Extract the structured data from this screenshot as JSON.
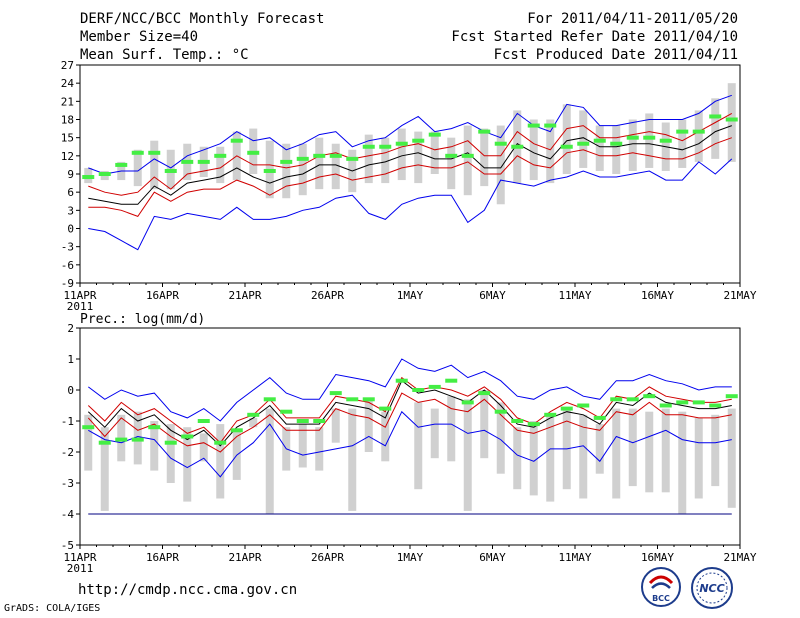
{
  "header": {
    "title": "DERF/NCC/BCC Monthly Forecast",
    "member_size": "Member Size=40",
    "variable": "Mean Surf. Temp.: °C",
    "period": "For 2011/04/11-2011/05/20",
    "fcst_started": "Fcst Started Refer Date 2011/04/10",
    "fcst_produced": "Fcst Produced Date 2011/04/11"
  },
  "footer": {
    "url": "http://cmdp.ncc.cma.gov.cn",
    "credit": "GrADS: COLA/IGES"
  },
  "logos": {
    "bcc": "BCC",
    "ncc": "NCC"
  },
  "colors": {
    "max": "#0000ee",
    "min": "#0000ee",
    "upper": "#d00000",
    "lower": "#d00000",
    "mean": "#000000",
    "obs": "#44ee44",
    "box": "#d0d0d0",
    "floor": "#000080"
  },
  "chart_data": [
    {
      "type": "line",
      "title": "Mean Surf. Temp.: °C",
      "x_ticks": [
        "11APR",
        "16APR",
        "21APR",
        "26APR",
        "1MAY",
        "6MAY",
        "11MAY",
        "16MAY",
        "21MAY"
      ],
      "x_sub": "2011",
      "x_range": [
        0,
        40
      ],
      "ylim": [
        -9,
        27
      ],
      "y_ticks": [
        -9,
        -6,
        -3,
        0,
        3,
        6,
        9,
        12,
        15,
        18,
        21,
        24,
        27
      ],
      "series": [
        {
          "name": "max",
          "values": [
            10,
            9,
            9.5,
            9.5,
            11.5,
            10,
            12,
            13,
            14,
            16,
            14.5,
            15,
            13,
            14,
            15.5,
            16,
            13.5,
            14.5,
            15,
            17,
            18.5,
            16,
            16.5,
            17.5,
            16,
            15,
            19,
            17,
            16,
            20.5,
            20,
            17,
            17,
            17.5,
            18,
            18,
            18,
            19,
            21,
            22
          ]
        },
        {
          "name": "upper",
          "values": [
            7,
            6,
            5.5,
            6,
            8.5,
            6.5,
            9,
            9.5,
            10,
            12,
            10.5,
            10.5,
            10,
            10.5,
            12,
            12.5,
            11.5,
            12,
            12.5,
            13.5,
            14,
            13,
            13.5,
            14.5,
            12,
            12,
            16,
            14,
            13,
            16.5,
            17,
            15,
            15,
            15.5,
            16,
            15.5,
            14.5,
            16,
            17.5,
            19
          ]
        },
        {
          "name": "mean",
          "values": [
            5,
            4.5,
            4,
            4,
            7,
            5.5,
            7.5,
            8,
            8.5,
            10,
            8.5,
            7.5,
            8.5,
            9,
            10.5,
            10.5,
            9.5,
            10.5,
            11,
            12,
            12.5,
            11.5,
            11.5,
            12.5,
            10,
            10,
            14,
            12.5,
            11.5,
            14.5,
            15,
            13.5,
            13.5,
            14,
            14,
            13.5,
            13,
            14,
            16,
            17
          ]
        },
        {
          "name": "lower",
          "values": [
            3.5,
            3.5,
            3,
            2,
            6,
            4.5,
            6,
            6.5,
            6.5,
            8,
            7,
            5.5,
            7,
            7.5,
            8.5,
            9,
            8,
            8.5,
            9,
            10,
            10.5,
            10,
            10,
            11,
            9,
            9,
            12,
            10.5,
            10,
            12.5,
            13,
            12,
            12,
            12.5,
            12,
            11.5,
            11.5,
            12.5,
            14,
            15
          ]
        },
        {
          "name": "min",
          "values": [
            0,
            -0.5,
            -2,
            -3.5,
            2,
            1.5,
            2.5,
            2,
            1.5,
            3.5,
            1.5,
            1.5,
            2,
            3,
            3.5,
            5,
            5.5,
            2.5,
            1.5,
            4,
            5,
            5.5,
            5.5,
            1,
            3,
            8,
            7.5,
            7,
            8,
            8.5,
            9.5,
            8.5,
            8.5,
            9,
            9.5,
            8,
            8,
            11,
            9,
            11.5
          ]
        },
        {
          "name": "obs",
          "values": [
            8.5,
            9,
            10.5,
            12.5,
            12.5,
            9.5,
            11,
            11,
            12,
            14.5,
            12.5,
            9.5,
            11,
            11.5,
            12,
            12,
            11.5,
            13.5,
            13.5,
            14,
            14.5,
            15.5,
            12,
            12,
            16,
            14,
            13.5,
            17,
            17,
            13.5,
            14,
            14.5,
            14,
            15,
            15,
            14.5,
            16,
            16,
            18.5,
            18
          ]
        },
        {
          "name": "box_high",
          "values": [
            10,
            9.5,
            11,
            13,
            14.5,
            13,
            14,
            13.5,
            13.5,
            16,
            16.5,
            14.5,
            14,
            14,
            15,
            14,
            13,
            15.5,
            15,
            16.5,
            16,
            16,
            15,
            17,
            16.5,
            17,
            19.5,
            18,
            18,
            20.5,
            19.5,
            17,
            17,
            18,
            19,
            17.5,
            18,
            19.5,
            21.5,
            24
          ]
        },
        {
          "name": "box_low",
          "values": [
            7.5,
            8,
            8,
            7,
            6.5,
            6.5,
            8,
            8.5,
            7.5,
            8,
            9,
            5,
            5,
            5.5,
            6.5,
            6.5,
            6,
            7.5,
            7.5,
            8,
            7.5,
            9,
            6.5,
            5.5,
            7,
            4,
            7.5,
            8,
            7.5,
            9,
            10,
            9.5,
            9,
            9.5,
            10,
            9.5,
            10,
            11,
            11.5,
            11
          ]
        }
      ]
    },
    {
      "type": "line",
      "title": "Prec.: log(mm/d)",
      "x_ticks": [
        "11APR",
        "16APR",
        "21APR",
        "26APR",
        "1MAY",
        "6MAY",
        "11MAY",
        "16MAY",
        "21MAY"
      ],
      "x_sub": "2011",
      "x_range": [
        0,
        40
      ],
      "ylim": [
        -5,
        2
      ],
      "y_ticks": [
        -5,
        -4,
        -3,
        -2,
        -1,
        0,
        1,
        2
      ],
      "floor_value": -4,
      "series": [
        {
          "name": "max",
          "values": [
            0.1,
            -0.3,
            0,
            -0.2,
            -0.1,
            -0.7,
            -0.9,
            -0.6,
            -1,
            -0.4,
            0,
            0.4,
            -0.1,
            -0.3,
            -0.3,
            0.5,
            0.4,
            0.3,
            0.1,
            1,
            0.7,
            0.6,
            0.8,
            0.4,
            0.6,
            0.3,
            -0.2,
            -0.3,
            0,
            0.1,
            -0.2,
            -0.3,
            0.3,
            0.3,
            0.5,
            0.3,
            0.2,
            0,
            0.1,
            0.1
          ]
        },
        {
          "name": "upper",
          "values": [
            -0.5,
            -1,
            -0.4,
            -0.8,
            -0.6,
            -1,
            -1.4,
            -1.2,
            -1.7,
            -1,
            -0.8,
            -0.3,
            -0.9,
            -0.9,
            -0.9,
            -0.2,
            -0.3,
            -0.4,
            -0.7,
            0.4,
            0,
            0.1,
            0,
            -0.2,
            0.1,
            -0.3,
            -0.9,
            -1.1,
            -0.7,
            -0.4,
            -0.6,
            -0.9,
            -0.2,
            -0.3,
            0.1,
            -0.2,
            -0.3,
            -0.4,
            -0.4,
            -0.3
          ]
        },
        {
          "name": "mean",
          "values": [
            -0.7,
            -1.2,
            -0.6,
            -1,
            -0.8,
            -1.3,
            -1.6,
            -1.3,
            -1.8,
            -1.2,
            -0.9,
            -0.5,
            -1.1,
            -1.1,
            -1.1,
            -0.4,
            -0.5,
            -0.6,
            -0.9,
            0.3,
            -0.1,
            0,
            -0.2,
            -0.4,
            0,
            -0.5,
            -1.1,
            -1.2,
            -0.9,
            -0.7,
            -0.8,
            -1.1,
            -0.4,
            -0.5,
            -0.1,
            -0.4,
            -0.5,
            -0.6,
            -0.6,
            -0.5
          ]
        },
        {
          "name": "lower",
          "values": [
            -0.9,
            -1.5,
            -0.9,
            -1.3,
            -1.1,
            -1.5,
            -1.8,
            -1.7,
            -2,
            -1.5,
            -1.2,
            -0.8,
            -1.3,
            -1.3,
            -1.3,
            -0.6,
            -0.8,
            -0.9,
            -1.2,
            -0.1,
            -0.4,
            -0.3,
            -0.6,
            -0.7,
            -0.3,
            -0.8,
            -1.3,
            -1.4,
            -1.2,
            -1,
            -1.2,
            -1.3,
            -0.7,
            -0.8,
            -0.4,
            -0.8,
            -0.8,
            -0.9,
            -0.9,
            -0.8
          ]
        },
        {
          "name": "min",
          "values": [
            -1.3,
            -1.6,
            -1.7,
            -1.5,
            -1.6,
            -2.2,
            -2.5,
            -2.2,
            -2.8,
            -2.1,
            -1.7,
            -1.1,
            -1.9,
            -2.1,
            -2,
            -1.9,
            -1.8,
            -1.5,
            -1.8,
            -0.7,
            -1.2,
            -1.1,
            -1.1,
            -1.4,
            -1.3,
            -1.6,
            -2.1,
            -2.3,
            -1.9,
            -1.9,
            -1.8,
            -2.3,
            -1.5,
            -1.7,
            -1.5,
            -1.3,
            -1.6,
            -1.7,
            -1.7,
            -1.6
          ]
        },
        {
          "name": "obs",
          "values": [
            -1.2,
            -1.7,
            -1.6,
            -1.6,
            -1.2,
            -1.7,
            -1.5,
            -1,
            -1.7,
            -1.3,
            -0.8,
            -0.3,
            -0.7,
            -1,
            -1,
            -0.1,
            -0.3,
            -0.3,
            -0.6,
            0.3,
            0,
            0.1,
            0.3,
            -0.4,
            -0.1,
            -0.7,
            -1,
            -1.1,
            -0.8,
            -0.6,
            -0.5,
            -0.9,
            -0.3,
            -0.3,
            -0.2,
            -0.5,
            -0.4,
            -0.4,
            -0.5,
            -0.2
          ]
        },
        {
          "name": "box_high",
          "values": [
            -0.8,
            -1.2,
            -0.8,
            -0.7,
            -1,
            -1.1,
            -1.2,
            -1.4,
            -1.1,
            -1.3,
            -0.9,
            -0.6,
            -1.2,
            -1.1,
            -1.2,
            -0.6,
            -0.6,
            -0.3,
            -0.7,
            -0.4,
            -0.4,
            -0.6,
            -0.2,
            -0.3,
            0,
            -0.4,
            -1.2,
            -1,
            -0.8,
            -0.6,
            -0.8,
            -1.1,
            -0.6,
            -0.6,
            -0.7,
            -0.6,
            -0.7,
            -0.9,
            -0.8,
            -0.6
          ]
        },
        {
          "name": "box_low",
          "values": [
            -2.6,
            -3.9,
            -2.3,
            -2.4,
            -2.6,
            -3,
            -3.6,
            -2.3,
            -3.5,
            -2.9,
            -1.2,
            -4,
            -2.6,
            -2.5,
            -2.6,
            -1.7,
            -3.9,
            -2,
            -2.3,
            -0.4,
            -3.2,
            -2.2,
            -2.3,
            -3.9,
            -2.2,
            -2.7,
            -3.2,
            -3.4,
            -3.6,
            -3.2,
            -3.5,
            -2.7,
            -3.5,
            -3.1,
            -3.3,
            -3.3,
            -4,
            -3.5,
            -3.1,
            -3.8
          ]
        }
      ]
    }
  ]
}
